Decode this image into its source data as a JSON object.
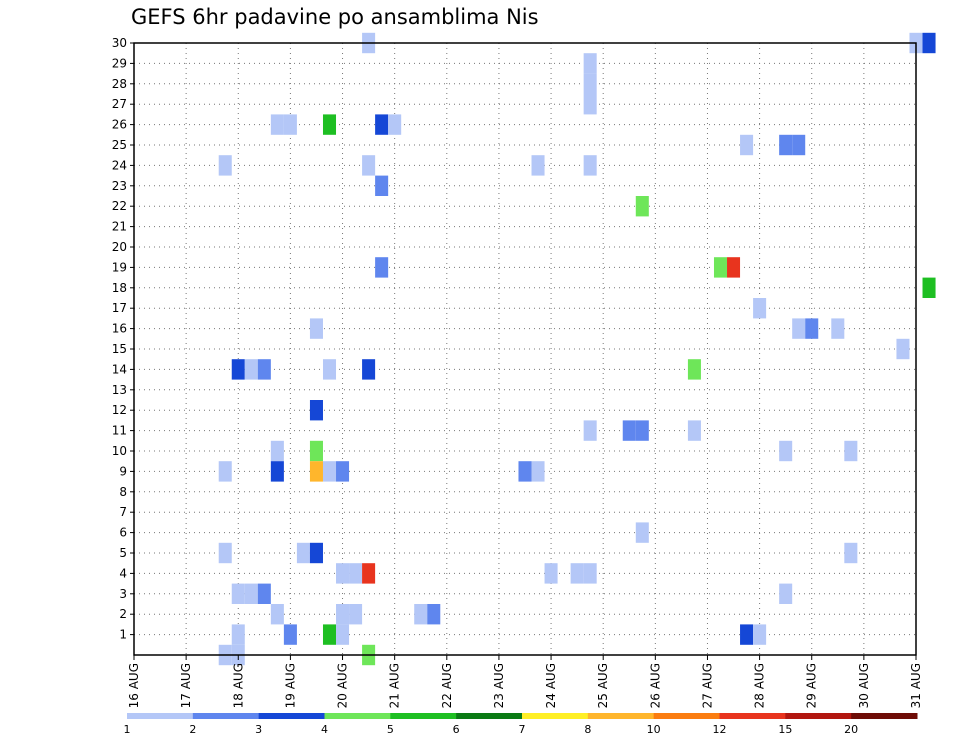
{
  "chart_data": {
    "type": "heatmap",
    "title": "GEFS 6hr padavine po ansamblima Nis",
    "x_tick_labels": [
      "16 AUG",
      "17 AUG",
      "18 AUG",
      "19 AUG",
      "20 AUG",
      "21 AUG",
      "22 AUG",
      "23 AUG",
      "24 AUG",
      "25 AUG",
      "26 AUG",
      "27 AUG",
      "28 AUG",
      "29 AUG",
      "30 AUG",
      "31 AUG"
    ],
    "x_range_days": [
      16,
      31
    ],
    "x_step": "6h",
    "y_tick_labels": [
      "1",
      "2",
      "3",
      "4",
      "5",
      "6",
      "7",
      "8",
      "9",
      "10",
      "11",
      "12",
      "13",
      "14",
      "15",
      "16",
      "17",
      "18",
      "19",
      "20",
      "21",
      "22",
      "23",
      "24",
      "25",
      "26",
      "27",
      "28",
      "29",
      "30"
    ],
    "y_range": [
      0,
      30
    ],
    "grid": true,
    "legend": {
      "position": "bottom",
      "labels": [
        "1",
        "2",
        "3",
        "4",
        "5",
        "6",
        "7",
        "8",
        "10",
        "12",
        "15",
        "20"
      ],
      "colors": [
        "#b4c7f7",
        "#5f86ee",
        "#1547d6",
        "#6ee659",
        "#1ebf22",
        "#0a7a14",
        "#ffef26",
        "#ffb62c",
        "#fb7d10",
        "#e8341e",
        "#b2160f",
        "#6e0c06"
      ]
    },
    "cells": [
      {
        "member": 30,
        "day": 20.5,
        "bin": 0
      },
      {
        "member": 30,
        "day": 31.0,
        "bin": 0
      },
      {
        "member": 30,
        "day": 31.25,
        "bin": 2
      },
      {
        "member": 29,
        "day": 24.75,
        "bin": 0
      },
      {
        "member": 28,
        "day": 24.75,
        "bin": 0
      },
      {
        "member": 27,
        "day": 24.75,
        "bin": 0
      },
      {
        "member": 26,
        "day": 18.75,
        "bin": 0
      },
      {
        "member": 26,
        "day": 19.0,
        "bin": 0
      },
      {
        "member": 26,
        "day": 19.75,
        "bin": 4
      },
      {
        "member": 26,
        "day": 20.75,
        "bin": 2
      },
      {
        "member": 26,
        "day": 21.0,
        "bin": 0
      },
      {
        "member": 25,
        "day": 27.75,
        "bin": 0
      },
      {
        "member": 25,
        "day": 28.5,
        "bin": 1
      },
      {
        "member": 25,
        "day": 28.75,
        "bin": 1
      },
      {
        "member": 24,
        "day": 17.75,
        "bin": 0
      },
      {
        "member": 24,
        "day": 20.5,
        "bin": 0
      },
      {
        "member": 24,
        "day": 23.75,
        "bin": 0
      },
      {
        "member": 24,
        "day": 24.75,
        "bin": 0
      },
      {
        "member": 23,
        "day": 20.75,
        "bin": 1
      },
      {
        "member": 22,
        "day": 25.75,
        "bin": 3
      },
      {
        "member": 19,
        "day": 20.75,
        "bin": 1
      },
      {
        "member": 19,
        "day": 27.25,
        "bin": 3
      },
      {
        "member": 19,
        "day": 27.5,
        "bin": 9
      },
      {
        "member": 18,
        "day": 31.25,
        "bin": 4
      },
      {
        "member": 17,
        "day": 28.0,
        "bin": 0
      },
      {
        "member": 16,
        "day": 19.5,
        "bin": 0
      },
      {
        "member": 16,
        "day": 28.75,
        "bin": 0
      },
      {
        "member": 16,
        "day": 29.0,
        "bin": 1
      },
      {
        "member": 16,
        "day": 29.5,
        "bin": 0
      },
      {
        "member": 15,
        "day": 30.75,
        "bin": 0
      },
      {
        "member": 14,
        "day": 26.75,
        "bin": 3
      },
      {
        "member": 14,
        "day": 18.0,
        "bin": 2
      },
      {
        "member": 14,
        "day": 18.25,
        "bin": 0
      },
      {
        "member": 14,
        "day": 18.5,
        "bin": 1
      },
      {
        "member": 14,
        "day": 19.75,
        "bin": 0
      },
      {
        "member": 14,
        "day": 20.5,
        "bin": 2
      },
      {
        "member": 12,
        "day": 19.5,
        "bin": 2
      },
      {
        "member": 11,
        "day": 24.75,
        "bin": 0
      },
      {
        "member": 11,
        "day": 25.5,
        "bin": 1
      },
      {
        "member": 11,
        "day": 25.75,
        "bin": 1
      },
      {
        "member": 11,
        "day": 26.75,
        "bin": 0
      },
      {
        "member": 10,
        "day": 18.75,
        "bin": 0
      },
      {
        "member": 10,
        "day": 19.5,
        "bin": 3
      },
      {
        "member": 10,
        "day": 28.5,
        "bin": 0
      },
      {
        "member": 10,
        "day": 29.75,
        "bin": 0
      },
      {
        "member": 9,
        "day": 17.75,
        "bin": 0
      },
      {
        "member": 9,
        "day": 18.75,
        "bin": 2
      },
      {
        "member": 9,
        "day": 19.5,
        "bin": 7
      },
      {
        "member": 9,
        "day": 19.75,
        "bin": 0
      },
      {
        "member": 9,
        "day": 20.0,
        "bin": 1
      },
      {
        "member": 9,
        "day": 23.5,
        "bin": 1
      },
      {
        "member": 9,
        "day": 23.75,
        "bin": 0
      },
      {
        "member": 6,
        "day": 25.75,
        "bin": 0
      },
      {
        "member": 5,
        "day": 17.75,
        "bin": 0
      },
      {
        "member": 5,
        "day": 19.25,
        "bin": 0
      },
      {
        "member": 5,
        "day": 19.5,
        "bin": 2
      },
      {
        "member": 5,
        "day": 29.75,
        "bin": 0
      },
      {
        "member": 4,
        "day": 20.0,
        "bin": 0
      },
      {
        "member": 4,
        "day": 20.25,
        "bin": 0
      },
      {
        "member": 4,
        "day": 20.5,
        "bin": 9
      },
      {
        "member": 4,
        "day": 24.0,
        "bin": 0
      },
      {
        "member": 4,
        "day": 24.5,
        "bin": 0
      },
      {
        "member": 4,
        "day": 24.75,
        "bin": 0
      },
      {
        "member": 3,
        "day": 18.0,
        "bin": 0
      },
      {
        "member": 3,
        "day": 18.25,
        "bin": 0
      },
      {
        "member": 3,
        "day": 18.5,
        "bin": 1
      },
      {
        "member": 3,
        "day": 28.5,
        "bin": 0
      },
      {
        "member": 2,
        "day": 18.75,
        "bin": 0
      },
      {
        "member": 2,
        "day": 20.0,
        "bin": 0
      },
      {
        "member": 2,
        "day": 20.25,
        "bin": 0
      },
      {
        "member": 2,
        "day": 21.5,
        "bin": 0
      },
      {
        "member": 2,
        "day": 21.75,
        "bin": 1
      },
      {
        "member": 1,
        "day": 18.0,
        "bin": 0
      },
      {
        "member": 1,
        "day": 19.0,
        "bin": 1
      },
      {
        "member": 1,
        "day": 19.75,
        "bin": 4
      },
      {
        "member": 1,
        "day": 20.0,
        "bin": 0
      },
      {
        "member": 1,
        "day": 27.75,
        "bin": 2
      },
      {
        "member": 1,
        "day": 28.0,
        "bin": 0
      },
      {
        "member": 0,
        "day": 17.75,
        "bin": 0
      },
      {
        "member": 0,
        "day": 18.0,
        "bin": 0
      },
      {
        "member": 0,
        "day": 20.5,
        "bin": 3
      }
    ]
  }
}
